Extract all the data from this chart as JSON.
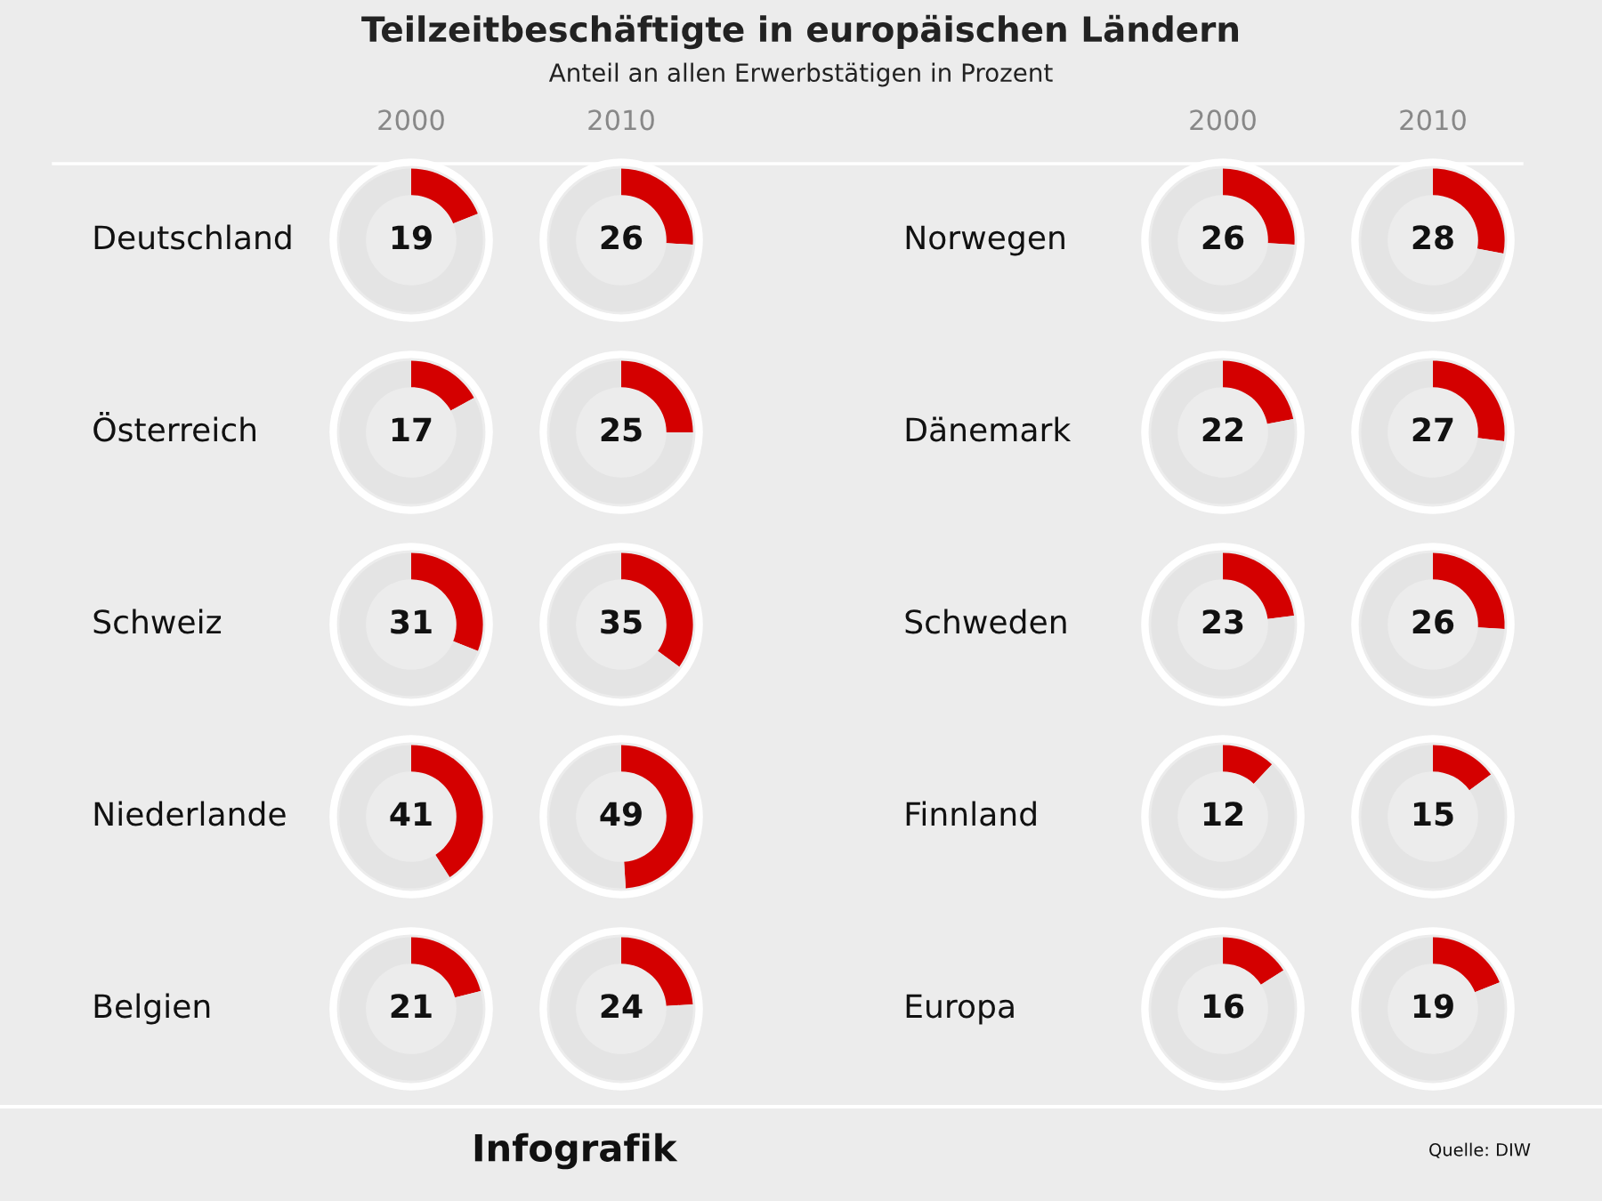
{
  "chart_data": [
    {
      "type": "other",
      "title": "Teilzeitbeschäftigte in europäischen Ländern",
      "subtitle": "Anteil an allen Erwerbstätigen in Prozent",
      "annotations": [
        "Infografik",
        "Quelle: DIW"
      ]
    },
    {
      "type": "donut",
      "title": "2000",
      "ylabel": "Deutschland",
      "categories": [
        null,
        null
      ],
      "values": [
        19,
        81
      ],
      "colors": [
        "#d40000",
        "#e4e4e4"
      ],
      "value_labels": [
        "19",
        null
      ]
    },
    {
      "type": "donut",
      "title": "2010",
      "categories": [
        null,
        null
      ],
      "values": [
        26,
        74
      ],
      "colors": [
        "#d40000",
        "#e4e4e4"
      ],
      "value_labels": [
        "26",
        null
      ]
    },
    {
      "type": "donut",
      "title": "2000",
      "ylabel": "Norwegen",
      "categories": [
        null,
        null
      ],
      "values": [
        26,
        74
      ],
      "colors": [
        "#d40000",
        "#e4e4e4"
      ],
      "value_labels": [
        "26",
        null
      ]
    },
    {
      "type": "donut",
      "title": "2010",
      "categories": [
        null,
        null
      ],
      "values": [
        28,
        72
      ],
      "colors": [
        "#d40000",
        "#e4e4e4"
      ],
      "value_labels": [
        "28",
        null
      ]
    },
    {
      "type": "donut",
      "ylabel": "Österreich",
      "categories": [
        null,
        null
      ],
      "values": [
        17,
        83
      ],
      "colors": [
        "#d40000",
        "#e4e4e4"
      ],
      "value_labels": [
        "17",
        null
      ]
    },
    {
      "type": "donut",
      "categories": [
        null,
        null
      ],
      "values": [
        25,
        75
      ],
      "colors": [
        "#d40000",
        "#e4e4e4"
      ],
      "value_labels": [
        "25",
        null
      ]
    },
    {
      "type": "donut",
      "ylabel": "Dänemark",
      "categories": [
        null,
        null
      ],
      "values": [
        22,
        78
      ],
      "colors": [
        "#d40000",
        "#e4e4e4"
      ],
      "value_labels": [
        "22",
        null
      ]
    },
    {
      "type": "donut",
      "categories": [
        null,
        null
      ],
      "values": [
        27,
        73
      ],
      "colors": [
        "#d40000",
        "#e4e4e4"
      ],
      "value_labels": [
        "27",
        null
      ]
    },
    {
      "type": "donut",
      "ylabel": "Schweiz",
      "categories": [
        null,
        null
      ],
      "values": [
        31,
        69
      ],
      "colors": [
        "#d40000",
        "#e4e4e4"
      ],
      "value_labels": [
        "31",
        null
      ]
    },
    {
      "type": "donut",
      "categories": [
        null,
        null
      ],
      "values": [
        35,
        65
      ],
      "colors": [
        "#d40000",
        "#e4e4e4"
      ],
      "value_labels": [
        "35",
        null
      ]
    },
    {
      "type": "donut",
      "ylabel": "Schweden",
      "categories": [
        null,
        null
      ],
      "values": [
        23,
        77
      ],
      "colors": [
        "#d40000",
        "#e4e4e4"
      ],
      "value_labels": [
        "23",
        null
      ]
    },
    {
      "type": "donut",
      "categories": [
        null,
        null
      ],
      "values": [
        26,
        74
      ],
      "colors": [
        "#d40000",
        "#e4e4e4"
      ],
      "value_labels": [
        "26",
        null
      ]
    },
    {
      "type": "donut",
      "ylabel": "Niederlande",
      "categories": [
        null,
        null
      ],
      "values": [
        41,
        59
      ],
      "colors": [
        "#d40000",
        "#e4e4e4"
      ],
      "value_labels": [
        "41",
        null
      ]
    },
    {
      "type": "donut",
      "categories": [
        null,
        null
      ],
      "values": [
        49,
        51
      ],
      "colors": [
        "#d40000",
        "#e4e4e4"
      ],
      "value_labels": [
        "49",
        null
      ]
    },
    {
      "type": "donut",
      "ylabel": "Finnland",
      "categories": [
        null,
        null
      ],
      "values": [
        12,
        88
      ],
      "colors": [
        "#d40000",
        "#e4e4e4"
      ],
      "value_labels": [
        "12",
        null
      ]
    },
    {
      "type": "donut",
      "categories": [
        null,
        null
      ],
      "values": [
        15,
        85
      ],
      "colors": [
        "#d40000",
        "#e4e4e4"
      ],
      "value_labels": [
        "15",
        null
      ]
    },
    {
      "type": "donut",
      "ylabel": "Belgien",
      "categories": [
        null,
        null
      ],
      "values": [
        21,
        79
      ],
      "colors": [
        "#d40000",
        "#e4e4e4"
      ],
      "value_labels": [
        "21",
        null
      ]
    },
    {
      "type": "donut",
      "categories": [
        null,
        null
      ],
      "values": [
        24,
        76
      ],
      "colors": [
        "#d40000",
        "#e4e4e4"
      ],
      "value_labels": [
        "24",
        null
      ]
    },
    {
      "type": "donut",
      "ylabel": "Europa",
      "categories": [
        null,
        null
      ],
      "values": [
        16,
        84
      ],
      "colors": [
        "#d40000",
        "#e4e4e4"
      ],
      "value_labels": [
        "16",
        null
      ]
    },
    {
      "type": "donut",
      "categories": [
        null,
        null
      ],
      "values": [
        19,
        81
      ],
      "colors": [
        "#d40000",
        "#e4e4e4"
      ],
      "value_labels": [
        "19",
        null
      ]
    }
  ]
}
